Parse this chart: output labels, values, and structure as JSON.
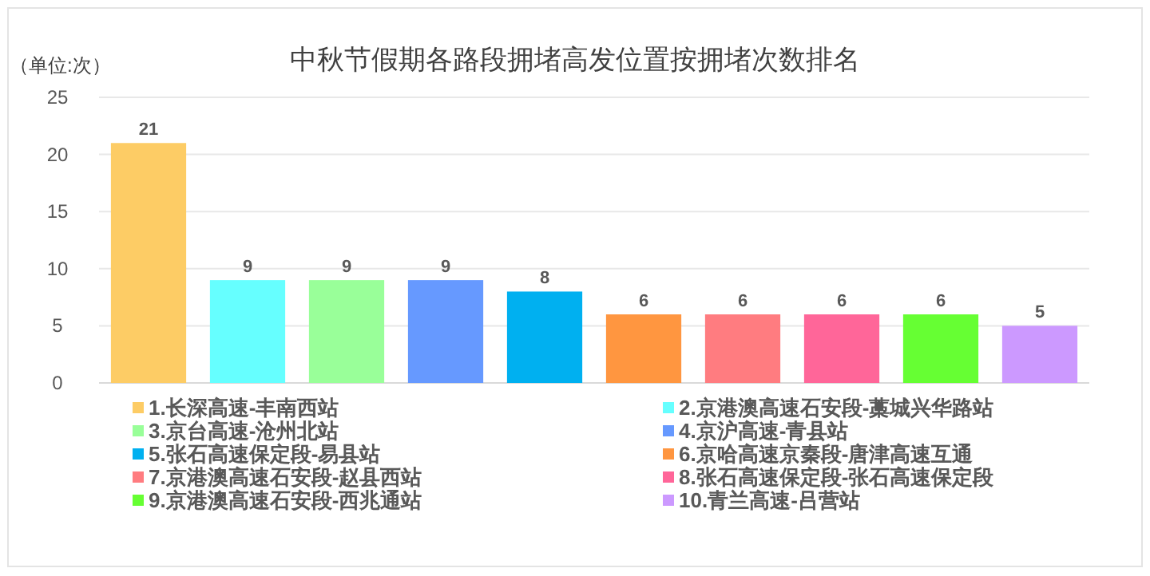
{
  "chart_data": {
    "type": "bar",
    "title": "中秋节假期各路段拥堵高发位置按拥堵次数排名",
    "ylabel": "（单位:次）",
    "categories": [
      null,
      null,
      null,
      null,
      null,
      null,
      null,
      null,
      null,
      null
    ],
    "series": [
      {
        "name": "1.长深高速-丰南西站",
        "color": "#fdcc65",
        "values": [
          21,
          null,
          null,
          null,
          null,
          null,
          null,
          null,
          null,
          null
        ]
      },
      {
        "name": "2.京港澳高速石安段-藁城兴华路站",
        "color": "#66ffff",
        "values": [
          null,
          9,
          null,
          null,
          null,
          null,
          null,
          null,
          null,
          null
        ]
      },
      {
        "name": "3.京台高速-沧州北站",
        "color": "#99ff99",
        "values": [
          null,
          null,
          9,
          null,
          null,
          null,
          null,
          null,
          null,
          null
        ]
      },
      {
        "name": "4.京沪高速-青县站",
        "color": "#6699ff",
        "values": [
          null,
          null,
          null,
          9,
          null,
          null,
          null,
          null,
          null,
          null
        ]
      },
      {
        "name": "5.张石高速保定段-易县站",
        "color": "#00b0f0",
        "values": [
          null,
          null,
          null,
          null,
          8,
          null,
          null,
          null,
          null,
          null
        ]
      },
      {
        "name": "6.京哈高速京秦段-唐津高速互通",
        "color": "#ff9640",
        "values": [
          null,
          null,
          null,
          null,
          null,
          6,
          null,
          null,
          null,
          null
        ]
      },
      {
        "name": "7.京港澳高速石安段-赵县西站",
        "color": "#ff7c80",
        "values": [
          null,
          null,
          null,
          null,
          null,
          null,
          6,
          null,
          null,
          null
        ]
      },
      {
        "name": "8.张石高速保定段-张石高速保定段",
        "color": "#ff6699",
        "values": [
          null,
          null,
          null,
          null,
          null,
          null,
          null,
          6,
          null,
          null
        ]
      },
      {
        "name": "9.京港澳高速石安段-西兆通站",
        "color": "#66ff33",
        "values": [
          null,
          null,
          null,
          null,
          null,
          null,
          null,
          null,
          6,
          null
        ]
      },
      {
        "name": "10.青兰高速-吕营站",
        "color": "#cc99ff",
        "values": [
          null,
          null,
          null,
          null,
          null,
          null,
          null,
          null,
          null,
          5
        ]
      }
    ],
    "ylim": [
      0,
      25
    ],
    "yticks": [
      0,
      5,
      10,
      15,
      20,
      25
    ],
    "grid": "y",
    "data_labels": true,
    "legend": "bottom"
  }
}
